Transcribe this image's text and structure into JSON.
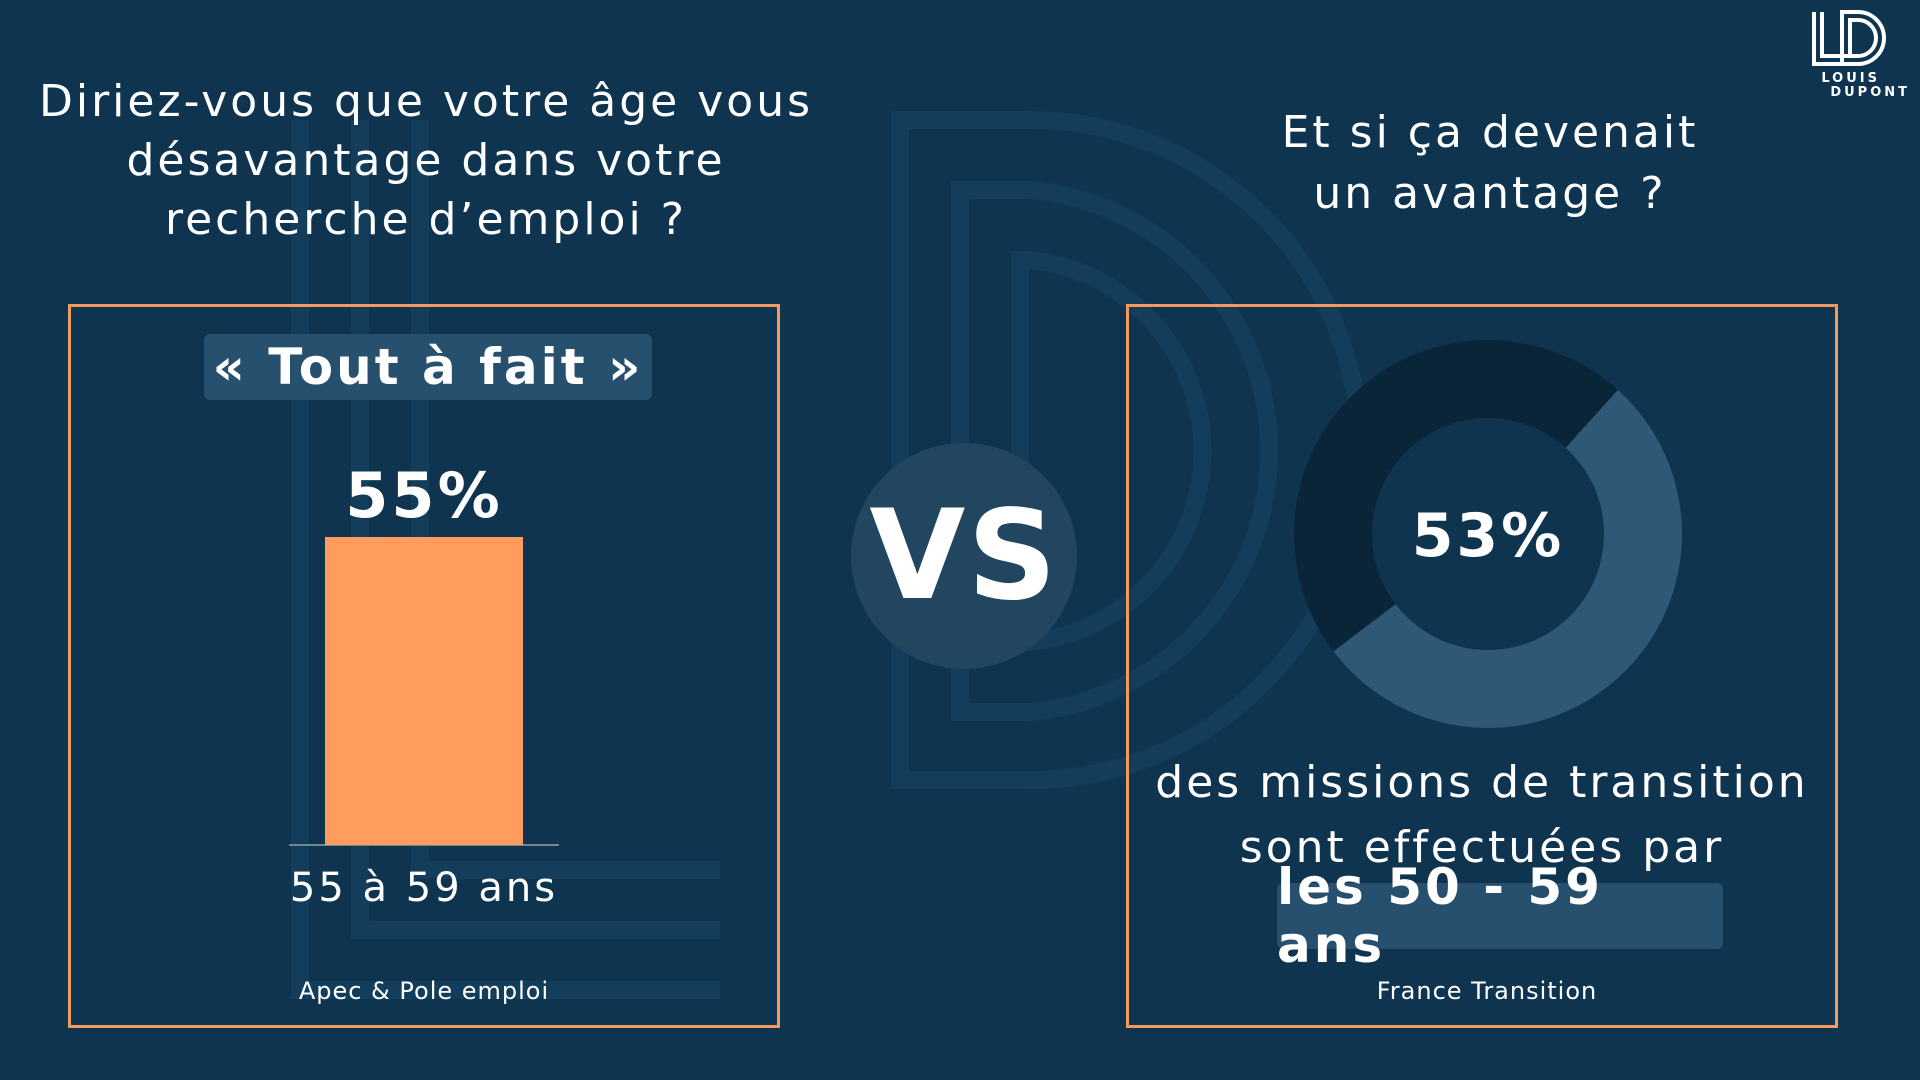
{
  "colors": {
    "background": "#0e344f",
    "accent_orange": "#f39b5f",
    "bar_fill": "#ff9c5e",
    "donut_dark": "#0a2538",
    "donut_light": "#2e5876",
    "badge_bg": "#27506e"
  },
  "logo": {
    "icon": "ld-logo-icon",
    "line1": "LOUIS",
    "line2": "DUPONT"
  },
  "left": {
    "question": "Diriez-vous que votre âge vous\ndésavantage dans votre\nrecherche d’emploi ?",
    "tag": "« Tout à fait »",
    "source": "Apec & Pole emploi"
  },
  "vs_label": "VS",
  "right": {
    "question": "Et si ça devenait\nun avantage ?",
    "desc_line1": "des missions de transition",
    "desc_line2": "sont effectuées par",
    "highlight": "les 50 - 59 ans",
    "source": "France Transition"
  },
  "chart_data": [
    {
      "type": "bar",
      "categories": [
        "55 à 59 ans"
      ],
      "values": [
        55
      ],
      "value_labels": [
        "55%"
      ],
      "ylim": [
        0,
        100
      ]
    },
    {
      "type": "pie",
      "donut": true,
      "categories": [
        "les 50 - 59 ans",
        ""
      ],
      "values": [
        53,
        47
      ],
      "center_label": "53%"
    }
  ]
}
